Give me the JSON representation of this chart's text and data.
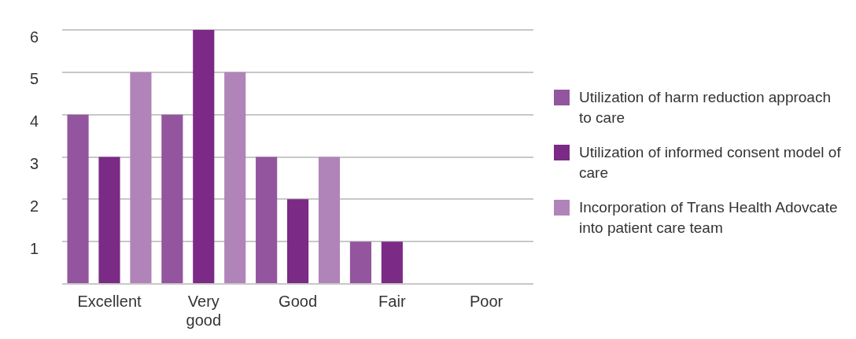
{
  "chart_data": {
    "type": "bar",
    "categories": [
      "Excellent",
      "Very good",
      "Good",
      "Fair",
      "Poor"
    ],
    "series": [
      {
        "name": "Utilization of harm reduction approach to care",
        "color": "#93559e",
        "values": [
          4,
          4,
          3,
          1,
          0
        ]
      },
      {
        "name": "Utilization of informed consent model of care",
        "color": "#7b2a85",
        "values": [
          3,
          6,
          2,
          1,
          0
        ]
      },
      {
        "name": "Incorporation of Trans Health Adovcate into patient care team",
        "color": "#b184b9",
        "values": [
          5,
          5,
          3,
          0,
          0
        ]
      }
    ],
    "ylim": [
      0,
      6
    ],
    "yticks": [
      {
        "value": 0,
        "label": null
      },
      1,
      2,
      3,
      4,
      5,
      6
    ],
    "grid": "y",
    "legend": "right"
  }
}
